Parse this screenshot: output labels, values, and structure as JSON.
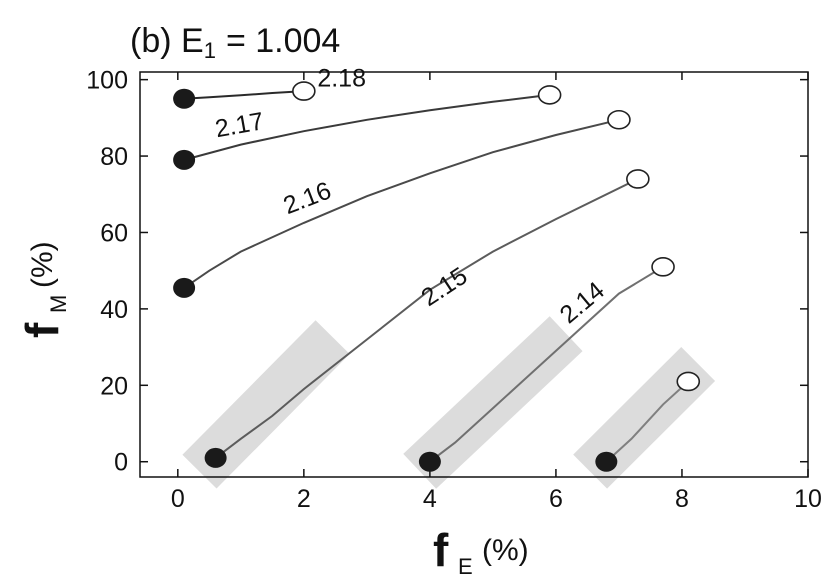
{
  "chart_data": {
    "type": "line",
    "title_prefix": "(b) E",
    "title_sub": "1",
    "title_suffix": "= 1.004",
    "x_axis": {
      "letter": "f",
      "sub": "E",
      "unit": "(%)"
    },
    "y_axis": {
      "letter": "f",
      "sub": "M",
      "unit": "(%)"
    },
    "xlim": [
      -0.6,
      10
    ],
    "ylim": [
      -4,
      102
    ],
    "xticks": [
      0,
      2,
      4,
      6,
      8,
      10
    ],
    "yticks": [
      0,
      20,
      40,
      60,
      80,
      100
    ],
    "x_tick_labels": [
      "0",
      "2",
      "4",
      "6",
      "8",
      "10"
    ],
    "y_tick_labels": [
      "0",
      "20",
      "40",
      "60",
      "80",
      "100"
    ],
    "grid": false,
    "legend": "none",
    "series": [
      {
        "label": "2.18",
        "color": "#2a2a2a",
        "points": [
          [
            0.1,
            95.0
          ],
          [
            0.5,
            95.4
          ],
          [
            1.0,
            95.9
          ],
          [
            1.5,
            96.5
          ],
          [
            2.0,
            97.0
          ]
        ],
        "label_at": [
          2.6,
          98.2
        ]
      },
      {
        "label": "2.17",
        "color": "#3a3a3a",
        "points": [
          [
            0.1,
            79.0
          ],
          [
            1.0,
            83.0
          ],
          [
            2.0,
            86.5
          ],
          [
            3.0,
            89.5
          ],
          [
            4.0,
            92.0
          ],
          [
            5.0,
            94.2
          ],
          [
            5.9,
            96.0
          ]
        ],
        "label_at": [
          1.0,
          86.0
        ]
      },
      {
        "label": "2.16",
        "color": "#4a4a4a",
        "points": [
          [
            0.1,
            45.5
          ],
          [
            0.5,
            50.0
          ],
          [
            1.0,
            55.0
          ],
          [
            2.0,
            62.5
          ],
          [
            3.0,
            69.5
          ],
          [
            4.0,
            75.5
          ],
          [
            5.0,
            81.0
          ],
          [
            6.0,
            85.5
          ],
          [
            7.0,
            89.5
          ]
        ],
        "label_at": [
          2.1,
          67.0
        ]
      },
      {
        "label": "2.15",
        "color": "#5c5c5c",
        "points": [
          [
            0.6,
            1.0
          ],
          [
            1.0,
            6.0
          ],
          [
            1.5,
            12.0
          ],
          [
            2.0,
            19.0
          ],
          [
            3.0,
            32.0
          ],
          [
            4.0,
            45.0
          ],
          [
            5.0,
            55.0
          ],
          [
            6.0,
            63.5
          ],
          [
            7.3,
            74.0
          ]
        ],
        "label_at": [
          4.3,
          44.0
        ]
      },
      {
        "label": "2.14",
        "color": "#707070",
        "points": [
          [
            4.0,
            0.0
          ],
          [
            4.4,
            5.0
          ],
          [
            5.0,
            14.0
          ],
          [
            6.0,
            29.0
          ],
          [
            7.0,
            44.0
          ],
          [
            7.7,
            51.0
          ]
        ],
        "label_at": [
          6.5,
          40.0
        ]
      },
      {
        "label": "",
        "color": "#808080",
        "points": [
          [
            6.8,
            0.0
          ],
          [
            7.2,
            6.0
          ],
          [
            7.7,
            15.0
          ],
          [
            8.1,
            21.0
          ]
        ],
        "label_at": null
      }
    ],
    "start_markers": [
      [
        0.1,
        95.0
      ],
      [
        0.1,
        79.0
      ],
      [
        0.1,
        45.5
      ],
      [
        0.6,
        1.0
      ],
      [
        4.0,
        0.0
      ],
      [
        6.8,
        0.0
      ]
    ],
    "end_markers": [
      [
        2.0,
        97.0
      ],
      [
        5.9,
        96.0
      ],
      [
        7.0,
        89.5
      ],
      [
        7.3,
        74.0
      ],
      [
        7.7,
        51.0
      ],
      [
        8.1,
        21.0
      ]
    ],
    "shaded_bands": [
      {
        "from": [
          0.5,
          0.0
        ],
        "to": [
          2.3,
          30.0
        ]
      },
      {
        "from": [
          4.0,
          0.0
        ],
        "to": [
          6.0,
          31.0
        ]
      },
      {
        "from": [
          6.7,
          0.0
        ],
        "to": [
          8.1,
          23.0
        ]
      }
    ]
  }
}
